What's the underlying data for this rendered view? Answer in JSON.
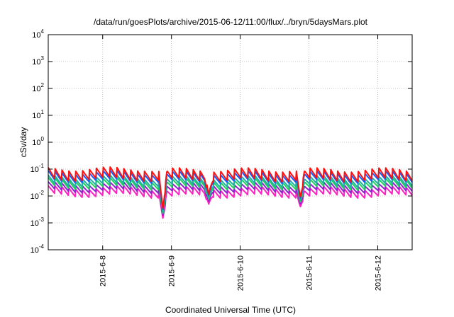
{
  "chart_data": {
    "type": "line",
    "title": "/data/run/goesPlots/archive/2015-06-12/11:00/flux/../bryn/5daysMars.plot",
    "xlabel": "Coordinated Universal Time (UTC)",
    "ylabel": "cSv/day",
    "x_ticks": [
      "2015-6-8",
      "2015-6-9",
      "2015-6-10",
      "2015-6-11",
      "2015-6-12"
    ],
    "x_tick_days": [
      8,
      9,
      10,
      11,
      12
    ],
    "xlim": [
      "2015-6-7 05:00",
      "2015-6-12 12:00"
    ],
    "y_scale": "log",
    "ylim": [
      0.0001,
      10000
    ],
    "y_ticks": [
      {
        "base": "10",
        "exp": "-4"
      },
      {
        "base": "10",
        "exp": "-3"
      },
      {
        "base": "10",
        "exp": "-2"
      },
      {
        "base": "10",
        "exp": "-1"
      },
      {
        "base": "10",
        "exp": "0"
      },
      {
        "base": "10",
        "exp": "1"
      },
      {
        "base": "10",
        "exp": "2"
      },
      {
        "base": "10",
        "exp": "3"
      },
      {
        "base": "10",
        "exp": "4"
      }
    ],
    "grid": true,
    "pattern": "sawtooth, period about 0.1 day",
    "colors": [
      "#ff1010",
      "#1060ff",
      "#20b0a0",
      "#20d060",
      "#9020d0",
      "#ff20c0"
    ],
    "series": [
      {
        "color": "#ff1010",
        "high": 0.1,
        "low": 0.04
      },
      {
        "color": "#1060ff",
        "high": 0.075,
        "low": 0.035
      },
      {
        "color": "#20b0a0",
        "high": 0.05,
        "low": 0.025
      },
      {
        "color": "#20d060",
        "high": 0.04,
        "low": 0.02
      },
      {
        "color": "#9020d0",
        "high": 0.028,
        "low": 0.015
      },
      {
        "color": "#ff20c0",
        "high": 0.02,
        "low": 0.01
      }
    ],
    "dips": [
      {
        "date": "2015-6-8 21:00",
        "value": 0.0015
      },
      {
        "date": "2015-6-10 21:00",
        "value": 0.004
      },
      {
        "date": "2015-6-9 13:00",
        "value": 0.005
      }
    ]
  }
}
